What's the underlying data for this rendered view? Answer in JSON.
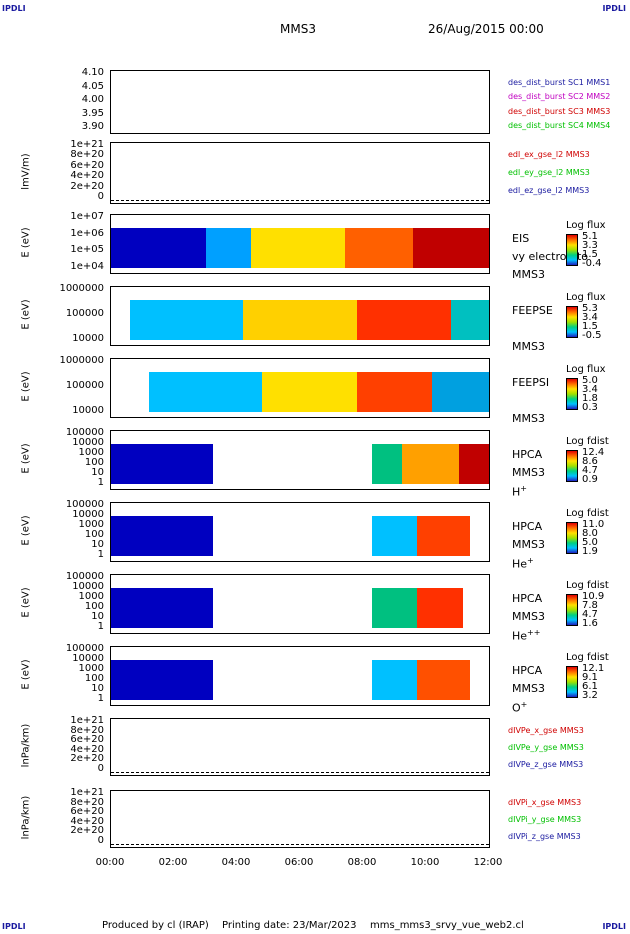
{
  "corners": {
    "tl": "IPDLI",
    "tr": "IPDLI",
    "bl": "IPDLI",
    "br": "IPDLI"
  },
  "header": {
    "spacecraft": "MMS3",
    "date": "26/Aug/2015 00:00"
  },
  "footer": {
    "producer": "Produced by cl (IRAP)",
    "printing": "Printing date: 23/Mar/2023",
    "file": "mms_mms3_srvy_vue_web2.cl"
  },
  "colors": {
    "blue": "#1a1aa0",
    "magenta": "#c000c0",
    "red": "#d00000",
    "green": "#00c000"
  },
  "chart_data": [
    {
      "type": "line",
      "ylabel": "",
      "yticks": [
        "4.10",
        "4.05",
        "4.00",
        "3.95",
        "3.90"
      ],
      "legend": [
        {
          "name": "des_dist_burst SC1 MMS1",
          "color": "#1a1aa0"
        },
        {
          "name": "des_dist_burst SC2 MMS2",
          "color": "#c000c0"
        },
        {
          "name": "des_dist_burst SC3 MMS3",
          "color": "#d00000"
        },
        {
          "name": "des_dist_burst SC4 MMS4",
          "color": "#00c000"
        }
      ]
    },
    {
      "type": "line",
      "ylabel": "lmV/m)",
      "yticks": [
        "1e+21",
        "8e+20",
        "6e+20",
        "4e+20",
        "2e+20",
        "0"
      ],
      "legend": [
        {
          "name": "edl_ex_gse_l2 MMS3",
          "color": "#d00000"
        },
        {
          "name": "edl_ey_gse_l2 MMS3",
          "color": "#00c000"
        },
        {
          "name": "edl_ez_gse_l2 MMS3",
          "color": "#1a1aa0"
        }
      ]
    },
    {
      "type": "heatmap",
      "ylabel": "E (eV)",
      "yticks": [
        "1e+07",
        "1e+06",
        "1e+05",
        "1e+04"
      ],
      "instrument": [
        "EIS",
        "vy electron to",
        "MMS3"
      ],
      "cb_title": "Log flux",
      "cb": [
        "5.1",
        "3.3",
        "1.5",
        "-0.4"
      ]
    },
    {
      "type": "heatmap",
      "ylabel": "E (eV)",
      "yticks": [
        "1000000",
        "100000",
        "10000"
      ],
      "instrument": [
        "FEEPSE",
        "",
        "MMS3"
      ],
      "cb_title": "Log flux",
      "cb": [
        "5.3",
        "3.4",
        "1.5",
        "-0.5"
      ]
    },
    {
      "type": "heatmap",
      "ylabel": "E (eV)",
      "yticks": [
        "1000000",
        "100000",
        "10000"
      ],
      "instrument": [
        "FEEPSI",
        "",
        "MMS3"
      ],
      "cb_title": "Log flux",
      "cb": [
        "5.0",
        "3.4",
        "1.8",
        "0.3"
      ]
    },
    {
      "type": "heatmap",
      "ylabel": "E (eV)",
      "yticks": [
        "100000",
        "10000",
        "1000",
        "100",
        "10",
        "1"
      ],
      "instrument": [
        "HPCA",
        "MMS3",
        "H"
      ],
      "ion_sup": "+",
      "cb_title": "Log fdist",
      "cb": [
        "12.4",
        "8.6",
        "4.7",
        "0.9"
      ]
    },
    {
      "type": "heatmap",
      "ylabel": "E (eV)",
      "yticks": [
        "100000",
        "10000",
        "1000",
        "100",
        "10",
        "1"
      ],
      "instrument": [
        "HPCA",
        "MMS3",
        "He"
      ],
      "ion_sup": "+",
      "cb_title": "Log fdist",
      "cb": [
        "11.0",
        "8.0",
        "5.0",
        "1.9"
      ]
    },
    {
      "type": "heatmap",
      "ylabel": "E (eV)",
      "yticks": [
        "100000",
        "10000",
        "1000",
        "100",
        "10",
        "1"
      ],
      "instrument": [
        "HPCA",
        "MMS3",
        "He"
      ],
      "ion_sup": "++",
      "cb_title": "Log fdist",
      "cb": [
        "10.9",
        "7.8",
        "4.7",
        "1.6"
      ]
    },
    {
      "type": "heatmap",
      "ylabel": "E (eV)",
      "yticks": [
        "100000",
        "10000",
        "1000",
        "100",
        "10",
        "1"
      ],
      "instrument": [
        "HPCA",
        "MMS3",
        "O"
      ],
      "ion_sup": "+",
      "cb_title": "Log fdist",
      "cb": [
        "12.1",
        "9.1",
        "6.1",
        "3.2"
      ]
    },
    {
      "type": "line",
      "ylabel": "lnPa/km)",
      "yticks": [
        "1e+21",
        "8e+20",
        "6e+20",
        "4e+20",
        "2e+20",
        "0"
      ],
      "legend": [
        {
          "name": "dIVPe_x_gse MMS3",
          "color": "#d00000"
        },
        {
          "name": "dIVPe_y_gse MMS3",
          "color": "#00c000"
        },
        {
          "name": "dIVPe_z_gse MMS3",
          "color": "#1a1aa0"
        }
      ]
    },
    {
      "type": "line",
      "ylabel": "lnPa/km)",
      "yticks": [
        "1e+21",
        "8e+20",
        "6e+20",
        "4e+20",
        "2e+20",
        "0"
      ],
      "legend": [
        {
          "name": "dIVPi_x_gse MMS3",
          "color": "#d00000"
        },
        {
          "name": "dIVPi_y_gse MMS3",
          "color": "#00c000"
        },
        {
          "name": "dIVPi_z_gse MMS3",
          "color": "#1a1aa0"
        }
      ]
    }
  ],
  "xaxis": {
    "ticks": [
      "00:00",
      "02:00",
      "04:00",
      "06:00",
      "08:00",
      "10:00",
      "12:00"
    ]
  }
}
